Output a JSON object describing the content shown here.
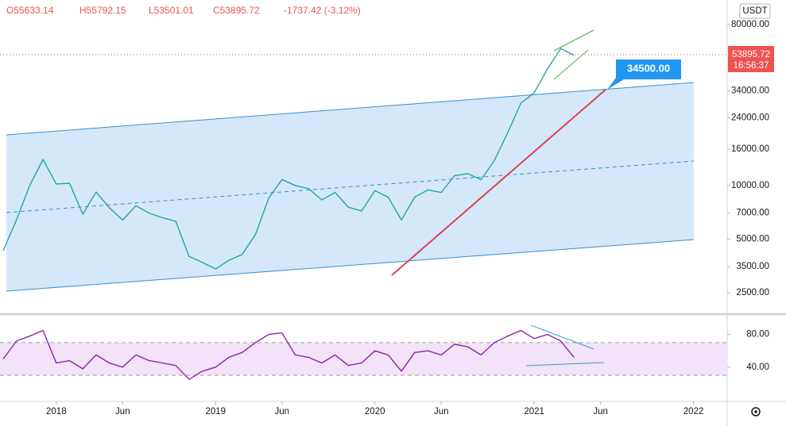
{
  "header": {
    "ohlc": [
      "O55633.14",
      "H55792.15",
      "L53501.01",
      "C53895.72",
      "-1737.42 (-3.12%)"
    ]
  },
  "currency": "USDT",
  "last_price_tag": {
    "price": "53895.72",
    "countdown": "16:56:37"
  },
  "callout": "34500.00",
  "chart_data": [
    {
      "type": "line",
      "log_scale": true,
      "color": "#26a69a",
      "x": [
        "2017-09",
        "2017-10",
        "2017-11",
        "2017-12",
        "2018-01",
        "2018-02",
        "2018-03",
        "2018-04",
        "2018-05",
        "2018-06",
        "2018-07",
        "2018-08",
        "2018-09",
        "2018-10",
        "2018-11",
        "2018-12",
        "2019-01",
        "2019-02",
        "2019-03",
        "2019-04",
        "2019-05",
        "2019-06",
        "2019-07",
        "2019-08",
        "2019-09",
        "2019-10",
        "2019-11",
        "2019-12",
        "2020-01",
        "2020-02",
        "2020-03",
        "2020-04",
        "2020-05",
        "2020-06",
        "2020-07",
        "2020-08",
        "2020-09",
        "2020-10",
        "2020-11",
        "2020-12",
        "2021-01",
        "2021-02",
        "2021-03",
        "2021-04"
      ],
      "values": [
        4300,
        6400,
        10000,
        14000,
        10200,
        10300,
        6900,
        9200,
        7500,
        6400,
        7700,
        7000,
        6600,
        6300,
        4000,
        3700,
        3400,
        3800,
        4100,
        5300,
        8500,
        10800,
        10000,
        9600,
        8300,
        9150,
        7550,
        7200,
        9350,
        8600,
        6400,
        8600,
        9450,
        9140,
        11350,
        11650,
        10780,
        13800,
        19700,
        29000,
        33100,
        45200,
        58800,
        53895.72
      ],
      "xlim": [
        "2017-09",
        "2022-03"
      ],
      "xticks": [
        {
          "value": "2018-01",
          "label": "2018"
        },
        {
          "value": "2018-06",
          "label": "Jun"
        },
        {
          "value": "2019-01",
          "label": "2019"
        },
        {
          "value": "2019-06",
          "label": "Jun"
        },
        {
          "value": "2020-01",
          "label": "2020"
        },
        {
          "value": "2020-06",
          "label": "Jun"
        },
        {
          "value": "2021-01",
          "label": "2021"
        },
        {
          "value": "2021-06",
          "label": "Jun"
        },
        {
          "value": "2022-01",
          "label": "2022"
        }
      ],
      "ylim": [
        1955,
        110000
      ],
      "yticks": [
        {
          "value": 80000,
          "label": "80000.00"
        },
        {
          "value": 34000,
          "label": "34000.00"
        },
        {
          "value": 24000,
          "label": "24000.00"
        },
        {
          "value": 16000,
          "label": "16000.00"
        },
        {
          "value": 10000,
          "label": "10000.00"
        },
        {
          "value": 7000,
          "label": "7000.00"
        },
        {
          "value": 5000,
          "label": "5000.00"
        },
        {
          "value": 3500,
          "label": "3500.00"
        },
        {
          "value": 2500,
          "label": "2500.00"
        }
      ]
    },
    {
      "type": "line",
      "color": "#8e24aa",
      "x": [
        "2017-09",
        "2017-10",
        "2017-11",
        "2017-12",
        "2018-01",
        "2018-02",
        "2018-03",
        "2018-04",
        "2018-05",
        "2018-06",
        "2018-07",
        "2018-08",
        "2018-09",
        "2018-10",
        "2018-11",
        "2018-12",
        "2019-01",
        "2019-02",
        "2019-03",
        "2019-04",
        "2019-05",
        "2019-06",
        "2019-07",
        "2019-08",
        "2019-09",
        "2019-10",
        "2019-11",
        "2019-12",
        "2020-01",
        "2020-02",
        "2020-03",
        "2020-04",
        "2020-05",
        "2020-06",
        "2020-07",
        "2020-08",
        "2020-09",
        "2020-10",
        "2020-11",
        "2020-12",
        "2021-01",
        "2021-02",
        "2021-03",
        "2021-04"
      ],
      "values": [
        50,
        72,
        78,
        85,
        45,
        48,
        38,
        55,
        45,
        40,
        55,
        48,
        45,
        42,
        25,
        35,
        40,
        52,
        58,
        70,
        80,
        82,
        55,
        52,
        45,
        55,
        42,
        45,
        60,
        55,
        35,
        58,
        60,
        55,
        68,
        65,
        55,
        70,
        78,
        85,
        75,
        80,
        72,
        52
      ],
      "ylim": [
        -1,
        101
      ],
      "yticks": [
        {
          "value": 80,
          "label": "80.00"
        },
        {
          "value": 40,
          "label": "40.00"
        }
      ],
      "bands": [
        30,
        70
      ]
    }
  ]
}
